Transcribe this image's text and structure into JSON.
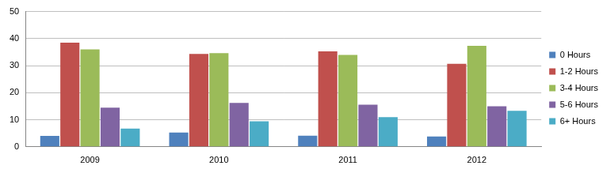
{
  "chart_data": {
    "type": "bar",
    "categories": [
      "2009",
      "2010",
      "2011",
      "2012"
    ],
    "series": [
      {
        "name": "0 Hours",
        "color": "#4f81bd",
        "values": [
          4,
          5.3,
          4.1,
          3.8
        ]
      },
      {
        "name": "1-2 Hours",
        "color": "#c0504d",
        "values": [
          38.5,
          34.3,
          35.3,
          30.7
        ]
      },
      {
        "name": "3-4 Hours",
        "color": "#9bbb59",
        "values": [
          36,
          34.6,
          34,
          37.3
        ]
      },
      {
        "name": "5-6 Hours",
        "color": "#8064a2",
        "values": [
          14.5,
          16.2,
          15.6,
          15
        ]
      },
      {
        "name": "6+ Hours",
        "color": "#4bacc6",
        "values": [
          6.7,
          9.4,
          11,
          13.3
        ]
      }
    ],
    "ylim": [
      0,
      50
    ],
    "yticks": [
      0,
      10,
      20,
      30,
      40,
      50
    ],
    "grid": true,
    "legend": "right"
  }
}
